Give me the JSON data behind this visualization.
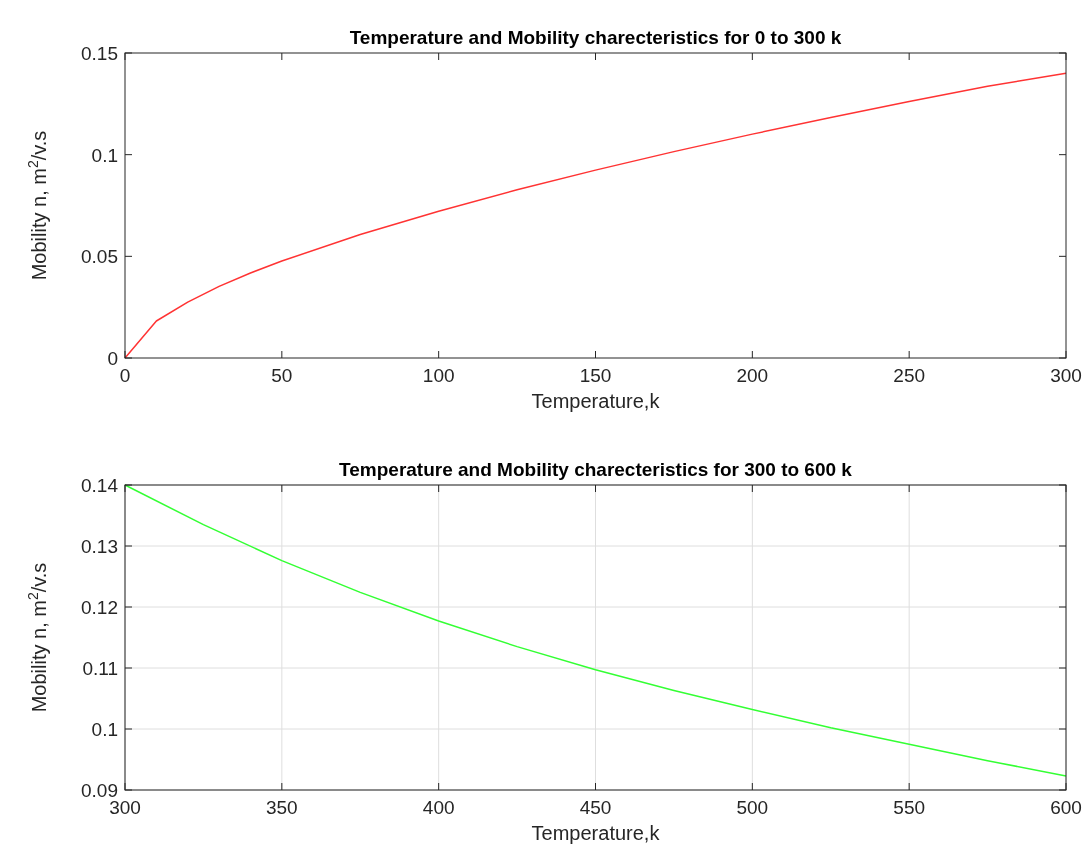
{
  "chart_data": [
    {
      "type": "line",
      "title": "Temperature and Mobility charecteristics for 0 to 300 k",
      "xlabel": "Temperature,k",
      "ylabel": "Mobility  n,  m$^{2}$/v.s",
      "xlim": [
        0,
        300
      ],
      "xticks": [
        0,
        50,
        100,
        150,
        200,
        250,
        300
      ],
      "ylim": [
        0,
        0.15
      ],
      "yticks": [
        0,
        0.05,
        0.1,
        0.15
      ],
      "grid": false,
      "series": [
        {
          "color": "#ff3333",
          "x": [
            0,
            10,
            20,
            30,
            40,
            50,
            75,
            100,
            125,
            150,
            175,
            200,
            225,
            250,
            275,
            300
          ],
          "values": [
            0,
            0.0182,
            0.0275,
            0.0352,
            0.0418,
            0.0477,
            0.0607,
            0.0722,
            0.0827,
            0.0924,
            0.1015,
            0.1101,
            0.1183,
            0.1262,
            0.1337,
            0.14
          ]
        }
      ]
    },
    {
      "type": "line",
      "title": "Temperature and Mobility charecteristics for 300 to 600 k",
      "xlabel": "Temperature,k",
      "ylabel": "Mobility  n,  m$^{2}$/v.s",
      "xlim": [
        300,
        600
      ],
      "xticks": [
        300,
        350,
        400,
        450,
        500,
        550,
        600
      ],
      "ylim": [
        0.09,
        0.14
      ],
      "yticks": [
        0.09,
        0.1,
        0.11,
        0.12,
        0.13,
        0.14
      ],
      "grid": true,
      "series": [
        {
          "color": "#33ff33",
          "x": [
            300,
            325,
            350,
            375,
            400,
            425,
            450,
            475,
            500,
            525,
            550,
            575,
            600
          ],
          "values": [
            0.14,
            0.1335,
            0.1276,
            0.1224,
            0.1177,
            0.1135,
            0.1097,
            0.1063,
            0.1032,
            0.1002,
            0.0975,
            0.0948,
            0.0923
          ]
        }
      ]
    }
  ]
}
